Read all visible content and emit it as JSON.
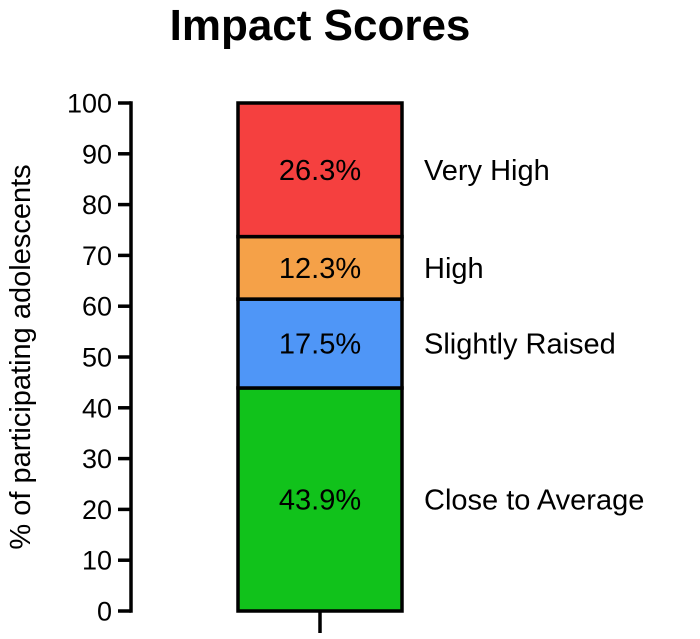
{
  "chart_data": {
    "type": "bar",
    "stacked": true,
    "title": "Impact Scores",
    "ylabel": "% of participating adolescents",
    "xlabel": "",
    "ylim": [
      0,
      100
    ],
    "yticks": [
      0,
      10,
      20,
      30,
      40,
      50,
      60,
      70,
      80,
      90,
      100
    ],
    "grid": false,
    "series": [
      {
        "name": "Close to Average",
        "value": 43.9,
        "label": "43.9%",
        "color": "#11c21b"
      },
      {
        "name": "Slightly Raised",
        "value": 17.5,
        "label": "17.5%",
        "color": "#4f96f7"
      },
      {
        "name": "High",
        "value": 12.3,
        "label": "12.3%",
        "color": "#f5a148"
      },
      {
        "name": "Very High",
        "value": 26.3,
        "label": "26.3%",
        "color": "#f5403f"
      }
    ]
  }
}
